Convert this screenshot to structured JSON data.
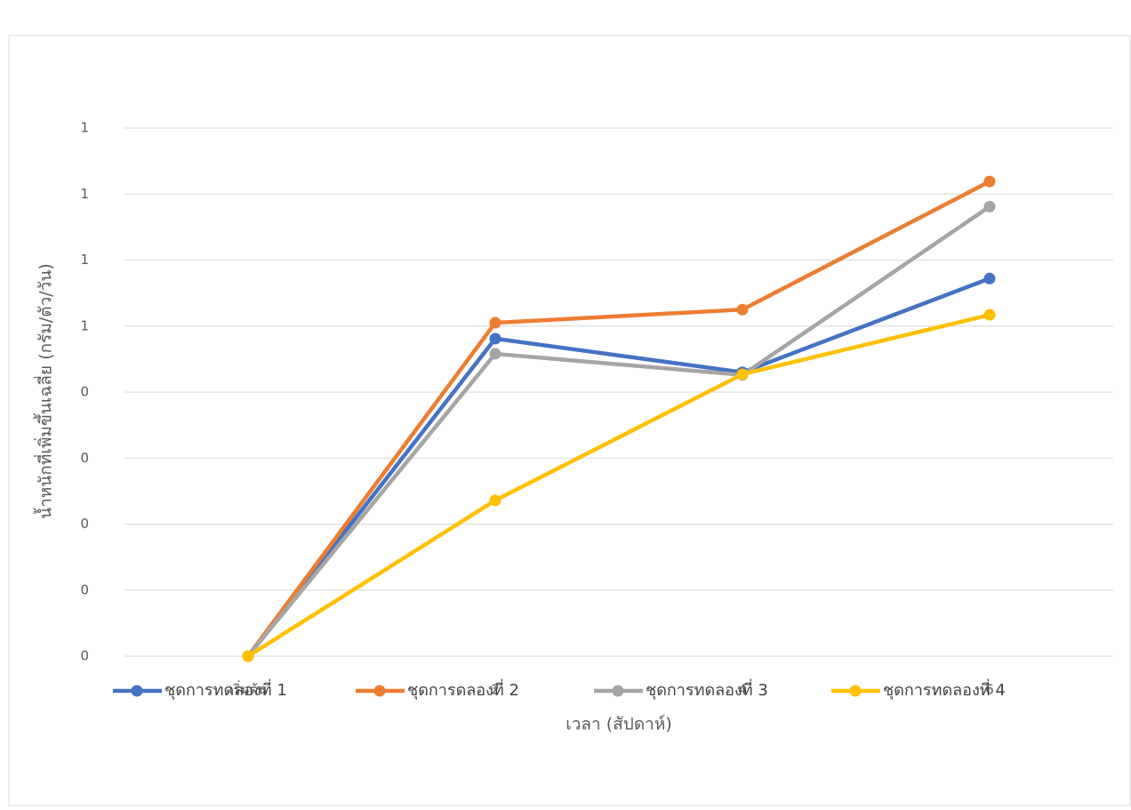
{
  "chart_data": {
    "type": "line",
    "x_label": "เวลา (สัปดาห์)",
    "y_label": "น้ำหนักที่เพิ่มขึ้นเฉลี่ย (กรัม/ตัว/วัน)",
    "categories": [
      "เริ่มต้น",
      "2",
      "4",
      "6"
    ],
    "series": [
      {
        "name": "ชุดการทดลองที่ 1",
        "color": "#4472c4",
        "values": [
          0,
          0.481,
          0.43,
          0.572
        ]
      },
      {
        "name": "ชุดการดลองที่ 2",
        "color": "#ed7d31",
        "values": [
          0,
          0.505,
          0.525,
          0.719
        ]
      },
      {
        "name": "ชุดการทดลองที่ 3",
        "color": "#a5a5a5",
        "values": [
          0,
          0.458,
          0.426,
          0.681
        ]
      },
      {
        "name": "ชุดการทดลองที่ 4",
        "color": "#ffc000",
        "values": [
          0,
          0.236,
          0.427,
          0.517
        ]
      }
    ],
    "ylim": [
      0,
      0.8
    ],
    "yticks": [
      0,
      {
        "value": 0.1,
        "label": "0"
      },
      {
        "value": 0.2,
        "label": "0"
      },
      {
        "value": 0.3,
        "label": "0"
      },
      {
        "value": 0.4,
        "label": "0"
      },
      {
        "value": 0.5,
        "label": "1"
      },
      {
        "value": 0.6,
        "label": "1"
      },
      {
        "value": 0.7,
        "label": "1"
      },
      {
        "value": 0.8,
        "label": "1"
      }
    ],
    "grid": true,
    "legend": "bottom"
  }
}
